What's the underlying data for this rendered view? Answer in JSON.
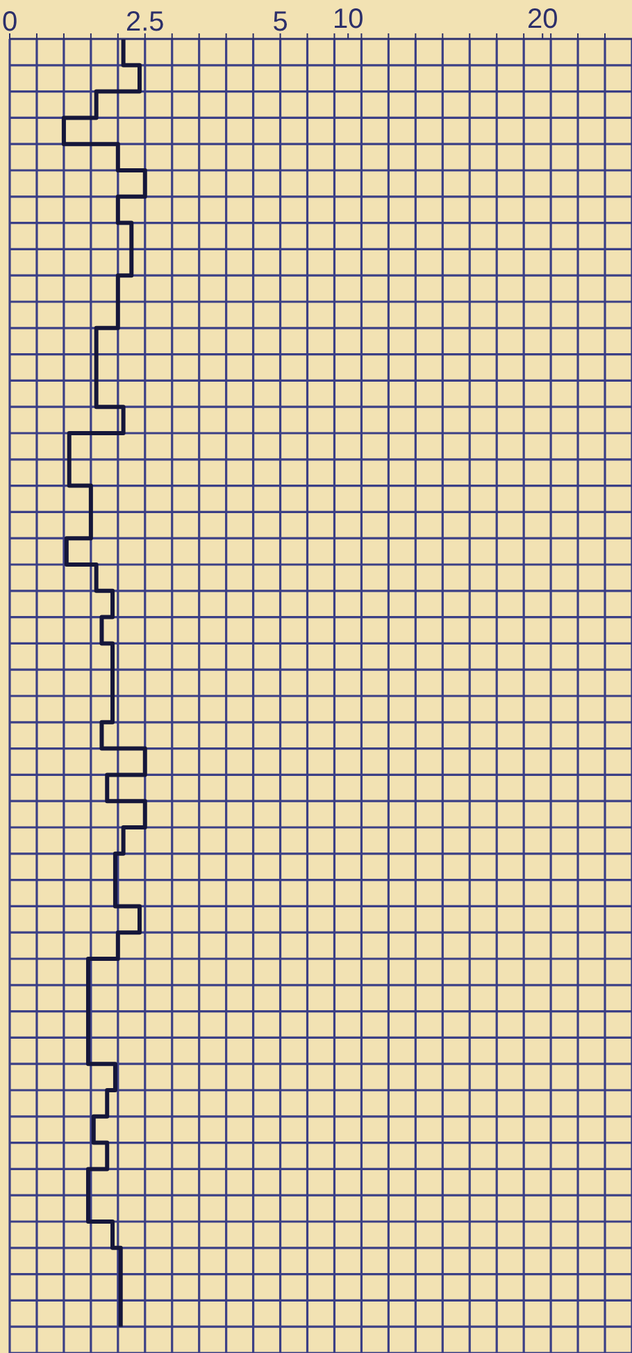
{
  "chart_data": {
    "type": "step",
    "orientation": "horizontal",
    "categories": [
      null,
      null,
      null,
      null,
      null,
      null,
      null,
      null,
      null,
      null,
      null,
      null,
      null,
      null,
      null,
      null,
      null,
      null,
      null,
      null,
      null,
      null,
      null,
      null,
      null,
      null,
      null,
      null,
      null,
      null,
      null,
      null,
      null,
      null,
      null,
      null,
      null,
      null,
      null,
      null,
      null,
      null,
      null,
      null,
      null,
      null,
      null,
      null,
      null,
      null
    ],
    "series": [
      {
        "color": "#15163a",
        "values": [
          2.1,
          2.4,
          1.6,
          1.0,
          2.0,
          2.5,
          2.0,
          2.25,
          2.25,
          2.0,
          2.0,
          1.6,
          1.6,
          1.6,
          2.1,
          1.1,
          1.1,
          1.5,
          1.5,
          1.05,
          1.6,
          1.9,
          1.7,
          1.9,
          1.9,
          1.9,
          1.7,
          2.5,
          1.8,
          2.5,
          2.1,
          1.95,
          1.95,
          2.4,
          2.0,
          1.45,
          1.45,
          1.45,
          1.45,
          1.95,
          1.8,
          1.55,
          1.8,
          1.45,
          1.45,
          1.9,
          2.05,
          2.05,
          2.05,
          2.05
        ]
      }
    ],
    "xlim": [
      0,
      11.5
    ],
    "xticks": [
      0,
      {
        "value": 0.5,
        "label": null
      },
      {
        "value": 1,
        "label": null
      },
      {
        "value": 1.5,
        "label": null
      },
      {
        "value": 2,
        "label": null
      },
      2.5,
      {
        "value": 3,
        "label": null
      },
      {
        "value": 3.5,
        "label": null
      },
      {
        "value": 4,
        "label": null
      },
      {
        "value": 4.5,
        "label": null
      },
      5,
      {
        "value": 5.5,
        "label": null
      },
      {
        "value": 6,
        "label": null
      },
      {
        "value": 6.5,
        "label": null
      },
      {
        "value": 7,
        "label": null
      },
      {
        "value": 7.5,
        "label": null
      },
      {
        "value": 8,
        "label": null
      },
      {
        "value": 8.5,
        "label": null
      },
      {
        "value": 9,
        "label": null
      },
      {
        "value": 9.5,
        "label": null
      },
      {
        "value": 10,
        "label": null
      },
      {
        "value": 10.5,
        "label": null
      },
      {
        "value": 11,
        "label": null
      }
    ],
    "x2lim": [
      -7.4,
      24.6
    ],
    "x2ticks": [
      10,
      20
    ],
    "grid": true,
    "line_style": "solid",
    "marker": "none"
  }
}
